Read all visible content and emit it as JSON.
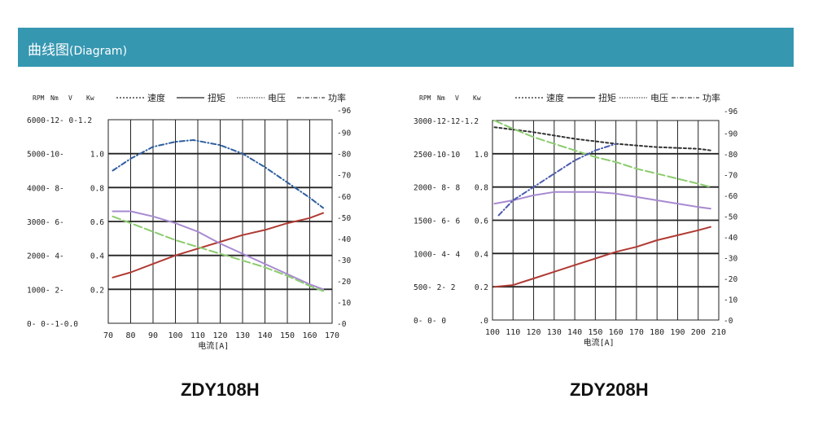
{
  "header": {
    "title_cn": "曲线图",
    "title_en": "(Diagram)"
  },
  "chart_data": [
    {
      "type": "line",
      "caption": "ZDY108H",
      "xlabel": "电流[A]",
      "x_ticks": [
        70,
        80,
        90,
        100,
        110,
        120,
        130,
        140,
        150,
        160,
        170
      ],
      "xlim": [
        70,
        170
      ],
      "left_axis_header": [
        "RPM",
        "Nm",
        "V",
        "Kw"
      ],
      "left_ticks": [
        "6000-12- 0-1.2",
        "5000-10-",
        "4000- 8-",
        "3000- 6-",
        "2000- 4-",
        "1000- 2-",
        "0- 0--1-0.0"
      ],
      "inner_ticks": [
        "1.0",
        "0.8",
        "0.6",
        "0.4",
        "0.2"
      ],
      "right_ticks": [
        "90",
        "80",
        "70",
        "60",
        "50",
        "40",
        "30",
        "20",
        "10",
        "0"
      ],
      "right_top_tick": "96",
      "left_ylim": [
        0,
        1.2
      ],
      "right_ylim": [
        0,
        96
      ],
      "legend": [
        "速度",
        "扭矩",
        "电压",
        "功率"
      ],
      "series": [
        {
          "name": "速度",
          "color": "#2e5e9e",
          "dash": "6,3,1,3",
          "points": [
            [
              72,
              0.9
            ],
            [
              80,
              0.97
            ],
            [
              90,
              1.04
            ],
            [
              100,
              1.07
            ],
            [
              108,
              1.08
            ],
            [
              120,
              1.05
            ],
            [
              130,
              1.0
            ],
            [
              140,
              0.92
            ],
            [
              150,
              0.83
            ],
            [
              160,
              0.74
            ],
            [
              166,
              0.68
            ]
          ]
        },
        {
          "name": "扭矩",
          "color": "#b03a33",
          "dash": "",
          "points": [
            [
              72,
              0.27
            ],
            [
              80,
              0.3
            ],
            [
              90,
              0.35
            ],
            [
              100,
              0.4
            ],
            [
              110,
              0.44
            ],
            [
              120,
              0.48
            ],
            [
              130,
              0.52
            ],
            [
              140,
              0.55
            ],
            [
              150,
              0.59
            ],
            [
              160,
              0.62
            ],
            [
              166,
              0.65
            ]
          ]
        },
        {
          "name": "电压",
          "color": "#a78ad0",
          "dash": "",
          "points": [
            [
              72,
              0.66
            ],
            [
              80,
              0.66
            ],
            [
              90,
              0.63
            ],
            [
              100,
              0.59
            ],
            [
              110,
              0.54
            ],
            [
              120,
              0.47
            ],
            [
              130,
              0.41
            ],
            [
              140,
              0.35
            ],
            [
              150,
              0.29
            ],
            [
              160,
              0.23
            ],
            [
              166,
              0.2
            ]
          ]
        },
        {
          "name": "功率",
          "color": "#8ccc6e",
          "dash": "10,4",
          "points": [
            [
              72,
              0.63
            ],
            [
              80,
              0.59
            ],
            [
              90,
              0.54
            ],
            [
              100,
              0.49
            ],
            [
              110,
              0.45
            ],
            [
              120,
              0.41
            ],
            [
              130,
              0.37
            ],
            [
              140,
              0.33
            ],
            [
              150,
              0.28
            ],
            [
              160,
              0.22
            ],
            [
              166,
              0.19
            ]
          ]
        }
      ]
    },
    {
      "type": "line",
      "caption": "ZDY208H",
      "xlabel": "电流[A]",
      "x_ticks": [
        100,
        110,
        120,
        130,
        140,
        150,
        160,
        170,
        180,
        190,
        200,
        210
      ],
      "xlim": [
        100,
        210
      ],
      "left_axis_header": [
        "RPM",
        "Nm",
        "V",
        "Kw"
      ],
      "left_ticks": [
        "3000-12-12-1.2",
        "2500-10-10",
        "2000- 8- 8",
        "1500- 6- 6",
        "1000- 4- 4",
        "500- 2- 2",
        "0- 0- 0"
      ],
      "inner_ticks": [
        "1.0",
        "0.8",
        "0.6",
        "0.4",
        "0.2",
        ".0"
      ],
      "right_ticks": [
        "90",
        "80",
        "70",
        "60",
        "50",
        "40",
        "30",
        "20",
        "10",
        "0"
      ],
      "right_top_tick": "96",
      "left_ylim": [
        0,
        1.2
      ],
      "right_ylim": [
        0,
        96
      ],
      "legend": [
        "速度",
        "扭矩",
        "电压",
        "功率"
      ],
      "series": [
        {
          "name": "速度",
          "color": "#333333",
          "dash": "3,3",
          "points": [
            [
              101,
              1.16
            ],
            [
              120,
              1.13
            ],
            [
              140,
              1.09
            ],
            [
              160,
              1.06
            ],
            [
              180,
              1.04
            ],
            [
              200,
              1.03
            ],
            [
              206,
              1.02
            ]
          ]
        },
        {
          "name": "扭矩",
          "color": "#b03a33",
          "dash": "",
          "points": [
            [
              101,
              0.2
            ],
            [
              110,
              0.21
            ],
            [
              120,
              0.25
            ],
            [
              130,
              0.29
            ],
            [
              140,
              0.33
            ],
            [
              150,
              0.37
            ],
            [
              160,
              0.41
            ],
            [
              170,
              0.44
            ],
            [
              180,
              0.48
            ],
            [
              190,
              0.51
            ],
            [
              200,
              0.54
            ],
            [
              206,
              0.56
            ]
          ]
        },
        {
          "name": "电压",
          "color": "#a78ad0",
          "dash": "",
          "points": [
            [
              101,
              0.7
            ],
            [
              110,
              0.72
            ],
            [
              120,
              0.75
            ],
            [
              130,
              0.77
            ],
            [
              140,
              0.77
            ],
            [
              150,
              0.77
            ],
            [
              160,
              0.76
            ],
            [
              170,
              0.74
            ],
            [
              180,
              0.72
            ],
            [
              190,
              0.7
            ],
            [
              200,
              0.68
            ],
            [
              206,
              0.67
            ]
          ]
        },
        {
          "name": "功率",
          "color": "#8ccc6e",
          "dash": "10,4",
          "points": [
            [
              101,
              1.2
            ],
            [
              110,
              1.15
            ],
            [
              120,
              1.1
            ],
            [
              130,
              1.06
            ],
            [
              140,
              1.02
            ],
            [
              150,
              0.98
            ],
            [
              160,
              0.95
            ],
            [
              170,
              0.91
            ],
            [
              180,
              0.88
            ],
            [
              190,
              0.85
            ],
            [
              200,
              0.82
            ],
            [
              206,
              0.8
            ]
          ]
        },
        {
          "name": "速度2",
          "color": "#4a5bb0",
          "dash": "6,3,1,3",
          "points": [
            [
              103,
              0.63
            ],
            [
              110,
              0.72
            ],
            [
              120,
              0.8
            ],
            [
              130,
              0.88
            ],
            [
              140,
              0.96
            ],
            [
              150,
              1.02
            ],
            [
              160,
              1.06
            ]
          ]
        }
      ]
    }
  ]
}
